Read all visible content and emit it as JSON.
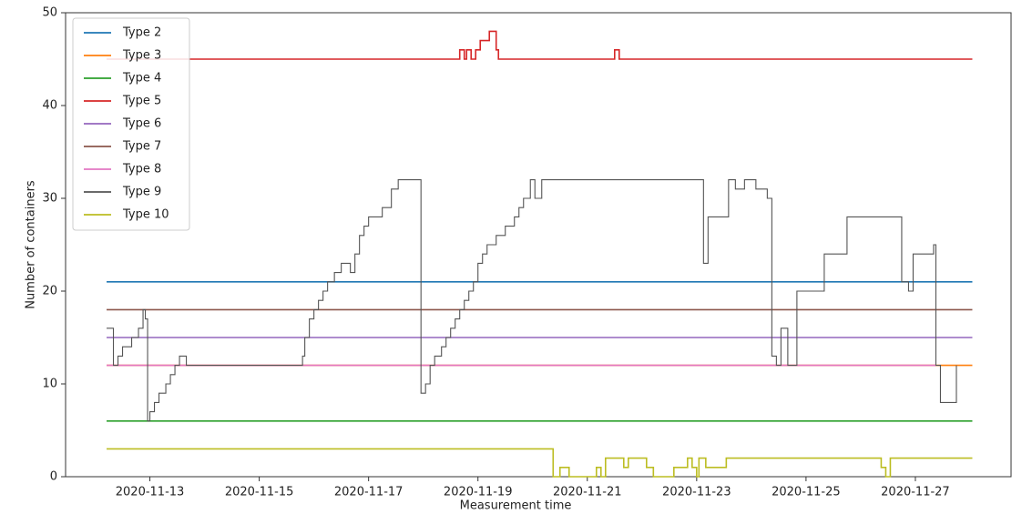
{
  "chart_data": {
    "type": "line",
    "drawstyle": "steps-post",
    "xlabel": "Measurement time",
    "ylabel": "Number of containers",
    "xlim": [
      "2020-11-11T11:00",
      "2020-11-28T18:00"
    ],
    "xticks": [
      "2020-11-13",
      "2020-11-15",
      "2020-11-17",
      "2020-11-19",
      "2020-11-21",
      "2020-11-23",
      "2020-11-25",
      "2020-11-27"
    ],
    "ylim": [
      0,
      50
    ],
    "yticks": [
      0,
      10,
      20,
      30,
      40,
      50
    ],
    "grid": false,
    "legend": "upper left",
    "series": [
      {
        "name": "Type 2",
        "color": "#1f77b4",
        "x": [
          "2020-11-12T05:00",
          "2020-11-28T01:00"
        ],
        "values": [
          21,
          21
        ]
      },
      {
        "name": "Type 3",
        "color": "#ff7f0e",
        "x": [
          "2020-11-12T05:00",
          "2020-11-28T01:00"
        ],
        "values": [
          12,
          12
        ]
      },
      {
        "name": "Type 4",
        "color": "#2ca02c",
        "x": [
          "2020-11-12T05:00",
          "2020-11-28T01:00"
        ],
        "values": [
          6,
          6
        ]
      },
      {
        "name": "Type 5",
        "color": "#d62728",
        "x": [
          "2020-11-12T05:00",
          "2020-11-18T16:00",
          "2020-11-18T18:00",
          "2020-11-18T19:00",
          "2020-11-18T21:00",
          "2020-11-18T23:00",
          "2020-11-19T01:00",
          "2020-11-19T05:00",
          "2020-11-19T08:00",
          "2020-11-19T09:00",
          "2020-11-21T12:00",
          "2020-11-21T14:00",
          "2020-11-28T01:00"
        ],
        "values": [
          45,
          46,
          45,
          46,
          45,
          46,
          47,
          48,
          46,
          45,
          46,
          45,
          45
        ]
      },
      {
        "name": "Type 6",
        "color": "#9467bd",
        "x": [
          "2020-11-12T05:00",
          "2020-11-28T01:00"
        ],
        "values": [
          15,
          15
        ]
      },
      {
        "name": "Type 7",
        "color": "#8c564b",
        "x": [
          "2020-11-12T05:00",
          "2020-11-28T01:00"
        ],
        "values": [
          18,
          18
        ]
      },
      {
        "name": "Type 8",
        "color": "#e377c2",
        "x": [
          "2020-11-12T05:00",
          "2020-11-27T09:00"
        ],
        "values": [
          12,
          12
        ]
      },
      {
        "name": "Type 9",
        "color": "#555555",
        "x": [
          "2020-11-12T05:00",
          "2020-11-12T07:00",
          "2020-11-12T08:00",
          "2020-11-12T10:00",
          "2020-11-12T12:00",
          "2020-11-12T16:00",
          "2020-11-12T19:00",
          "2020-11-12T21:00",
          "2020-11-12T22:00",
          "2020-11-12T23:00",
          "2020-11-13T00:00",
          "2020-11-13T02:00",
          "2020-11-13T04:00",
          "2020-11-13T07:00",
          "2020-11-13T09:00",
          "2020-11-13T11:00",
          "2020-11-13T13:00",
          "2020-11-13T16:00",
          "2020-11-15T18:00",
          "2020-11-15T19:00",
          "2020-11-15T20:00",
          "2020-11-15T22:00",
          "2020-11-16T00:00",
          "2020-11-16T02:00",
          "2020-11-16T04:00",
          "2020-11-16T06:00",
          "2020-11-16T09:00",
          "2020-11-16T12:00",
          "2020-11-16T16:00",
          "2020-11-16T18:00",
          "2020-11-16T20:00",
          "2020-11-16T22:00",
          "2020-11-17T00:00",
          "2020-11-17T06:00",
          "2020-11-17T10:00",
          "2020-11-17T13:00",
          "2020-11-17T21:00",
          "2020-11-17T23:00",
          "2020-11-18T01:00",
          "2020-11-18T03:00",
          "2020-11-18T05:00",
          "2020-11-18T08:00",
          "2020-11-18T10:00",
          "2020-11-18T12:00",
          "2020-11-18T14:00",
          "2020-11-18T16:00",
          "2020-11-18T18:00",
          "2020-11-18T20:00",
          "2020-11-18T22:00",
          "2020-11-19T00:00",
          "2020-11-19T02:00",
          "2020-11-19T04:00",
          "2020-11-19T08:00",
          "2020-11-19T12:00",
          "2020-11-19T16:00",
          "2020-11-19T18:00",
          "2020-11-19T20:00",
          "2020-11-19T23:00",
          "2020-11-20T01:00",
          "2020-11-20T04:00",
          "2020-11-23T01:00",
          "2020-11-23T03:00",
          "2020-11-23T05:00",
          "2020-11-23T12:00",
          "2020-11-23T14:00",
          "2020-11-23T17:00",
          "2020-11-23T21:00",
          "2020-11-24T02:00",
          "2020-11-24T05:00",
          "2020-11-24T07:00",
          "2020-11-24T09:00",
          "2020-11-24T11:00",
          "2020-11-24T13:00",
          "2020-11-24T15:00",
          "2020-11-24T16:00",
          "2020-11-24T19:00",
          "2020-11-24T20:00",
          "2020-11-25T06:00",
          "2020-11-25T08:00",
          "2020-11-25T16:00",
          "2020-11-25T18:00",
          "2020-11-26T16:00",
          "2020-11-26T18:00",
          "2020-11-26T21:00",
          "2020-11-26T23:00",
          "2020-11-27T07:00",
          "2020-11-27T08:00",
          "2020-11-27T09:00",
          "2020-11-27T11:00",
          "2020-11-27T16:00",
          "2020-11-27T18:00"
        ],
        "values": [
          16,
          16,
          12,
          13,
          14,
          15,
          16,
          18,
          17,
          6,
          7,
          8,
          9,
          10,
          11,
          12,
          13,
          12,
          12,
          13,
          15,
          17,
          18,
          19,
          20,
          21,
          22,
          23,
          22,
          24,
          26,
          27,
          28,
          29,
          31,
          32,
          32,
          9,
          10,
          12,
          13,
          14,
          15,
          16,
          17,
          18,
          19,
          20,
          21,
          23,
          24,
          25,
          26,
          27,
          28,
          29,
          30,
          32,
          30,
          32,
          32,
          23,
          28,
          28,
          32,
          31,
          32,
          31,
          31,
          30,
          13,
          12,
          16,
          16,
          12,
          12,
          20,
          20,
          24,
          24,
          28,
          28,
          21,
          20,
          24,
          24,
          25,
          12,
          8,
          8,
          12
        ]
      },
      {
        "name": "Type 10",
        "color": "#bcbd22",
        "x": [
          "2020-11-12T05:00",
          "2020-11-20T09:00",
          "2020-11-20T12:00",
          "2020-11-20T16:00",
          "2020-11-21T04:00",
          "2020-11-21T06:00",
          "2020-11-21T08:00",
          "2020-11-21T16:00",
          "2020-11-21T18:00",
          "2020-11-22T02:00",
          "2020-11-22T05:00",
          "2020-11-22T14:00",
          "2020-11-22T20:00",
          "2020-11-22T22:00",
          "2020-11-23T00:00",
          "2020-11-23T01:00",
          "2020-11-23T04:00",
          "2020-11-23T13:00",
          "2020-11-26T09:00",
          "2020-11-26T11:00",
          "2020-11-26T13:00",
          "2020-11-28T01:00"
        ],
        "values": [
          3,
          0,
          1,
          0,
          1,
          0,
          2,
          1,
          2,
          1,
          0,
          1,
          2,
          1,
          0,
          2,
          1,
          2,
          1,
          0,
          2,
          2
        ]
      }
    ]
  }
}
